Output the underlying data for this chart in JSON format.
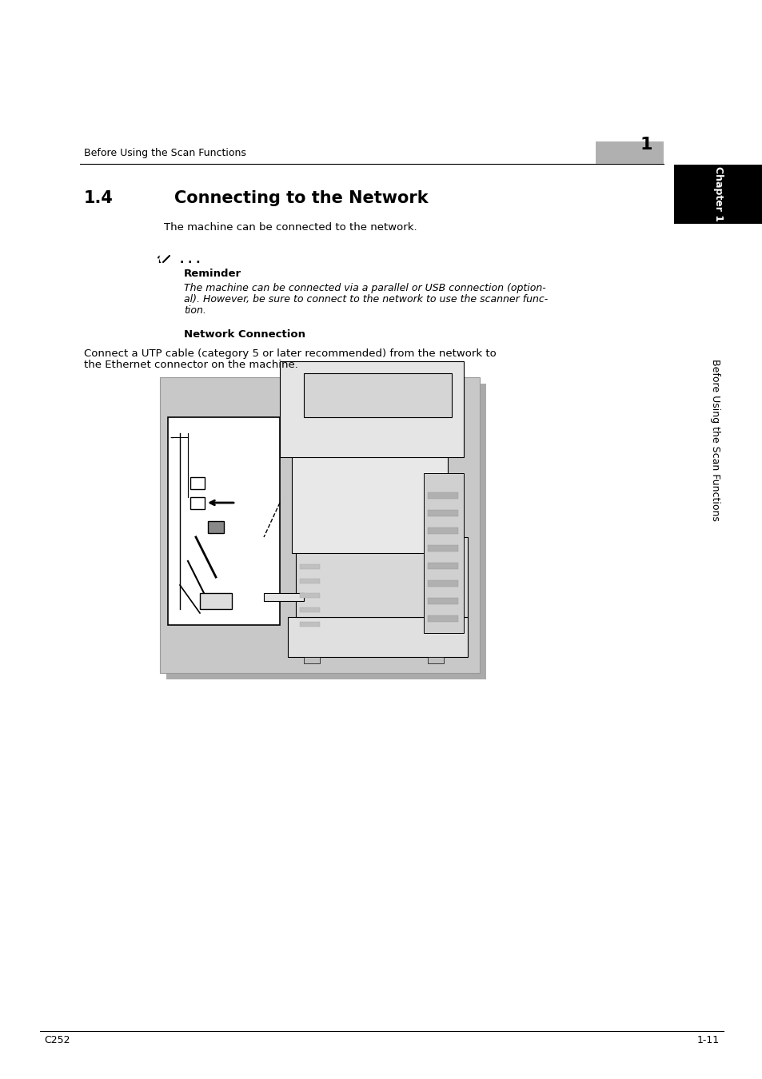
{
  "page_bg": "#ffffff",
  "header_text": "Before Using the Scan Functions",
  "header_num_text": "1",
  "header_num_box_color": "#b0b0b0",
  "chapter_tab_color": "#000000",
  "chapter_tab_text": "Chapter 1",
  "chapter_tab_text_color": "#ffffff",
  "sidebar_text": "Before Using the Scan Functions",
  "sidebar_text_color": "#000000",
  "section_num": "1.4",
  "section_title": "Connecting to the Network",
  "section_intro": "The machine can be connected to the network.",
  "reminder_label": "Reminder",
  "reminder_line1": "The machine can be connected via a parallel or USB connection (option-",
  "reminder_line2": "al). However, be sure to connect to the network to use the scanner func-",
  "reminder_line3": "tion.",
  "network_connection_label": "Network Connection",
  "network_connection_line1": "Connect a UTP cable (category 5 or later recommended) from the network to",
  "network_connection_line2": "the Ethernet connector on the machine.",
  "footer_left": "C252",
  "footer_right": "1-11",
  "image_box_color": "#c8c8c8"
}
